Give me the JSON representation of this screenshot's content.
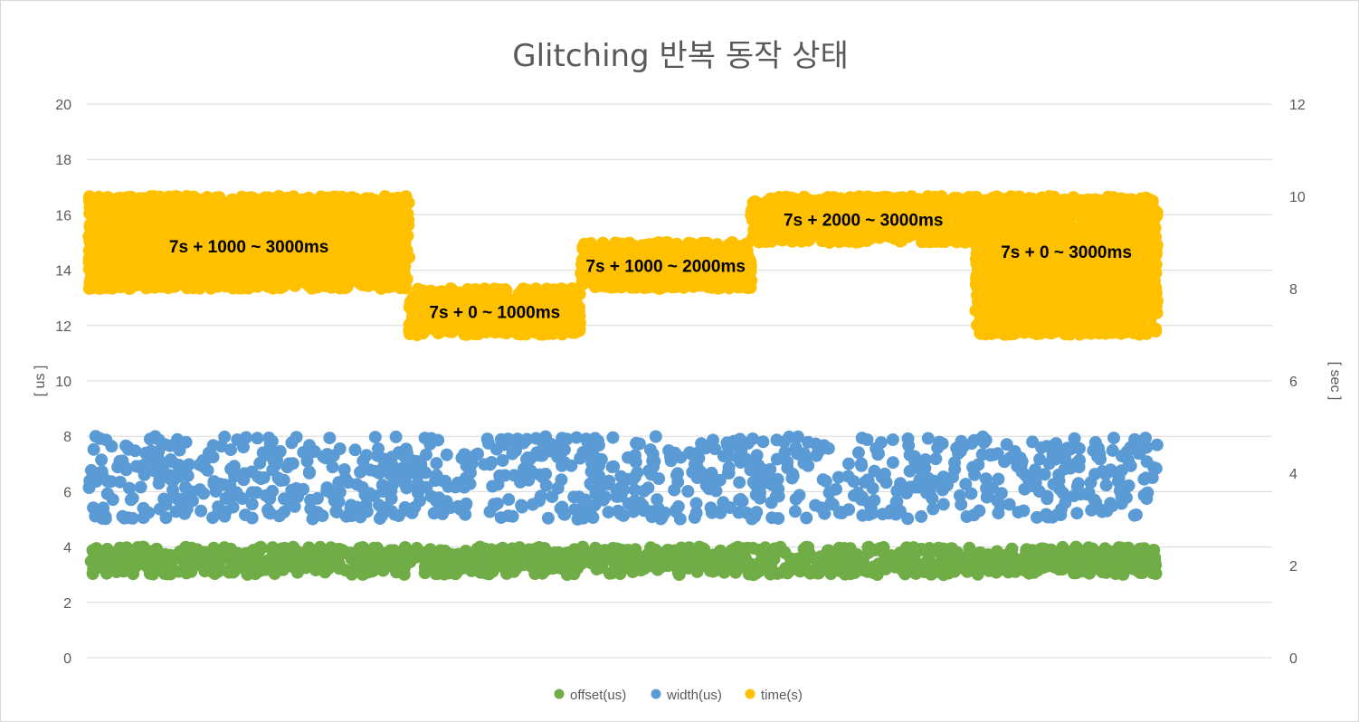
{
  "chart_data": {
    "type": "scatter",
    "title": "Glitching 반복 동작 상태",
    "y_left": {
      "label": "[ us ]",
      "range": [
        0,
        20
      ],
      "ticks": [
        "0",
        "2",
        "4",
        "6",
        "8",
        "10",
        "12",
        "14",
        "16",
        "18",
        "20"
      ]
    },
    "y_right": {
      "label": "[ sec ]",
      "range": [
        0,
        12
      ],
      "ticks": [
        "0",
        "2",
        "4",
        "6",
        "8",
        "10",
        "12"
      ]
    },
    "x_range": [
      0,
      1000
    ],
    "grid": true,
    "legend_position": "bottom",
    "series": [
      {
        "name": "offset(us)",
        "axis": "left",
        "color": "#70ad47",
        "x_range": [
          0,
          1000
        ],
        "y_band": [
          3.0,
          4.0
        ]
      },
      {
        "name": "width(us)",
        "axis": "left",
        "color": "#5b9bd5",
        "x_range": [
          0,
          1000
        ],
        "y_band": [
          5.0,
          8.0
        ]
      },
      {
        "name": "time(s)",
        "axis": "right",
        "color": "#ffc000",
        "segments": [
          {
            "x": [
              0,
              300
            ],
            "y": [
              8.0,
              10.0
            ],
            "label": "7s + 1000 ~ 3000ms"
          },
          {
            "x": [
              300,
              460
            ],
            "y": [
              7.0,
              8.0
            ],
            "label": "7s + 0 ~ 1000ms"
          },
          {
            "x": [
              460,
              620
            ],
            "y": [
              8.0,
              9.0
            ],
            "label": "7s + 1000 ~ 2000ms"
          },
          {
            "x": [
              620,
              830
            ],
            "y": [
              9.0,
              10.0
            ],
            "label": "7s + 2000 ~ 3000ms"
          },
          {
            "x": [
              830,
              1000
            ],
            "y": [
              7.0,
              10.0
            ],
            "label": "7s + 0 ~ 3000ms"
          }
        ]
      }
    ]
  }
}
